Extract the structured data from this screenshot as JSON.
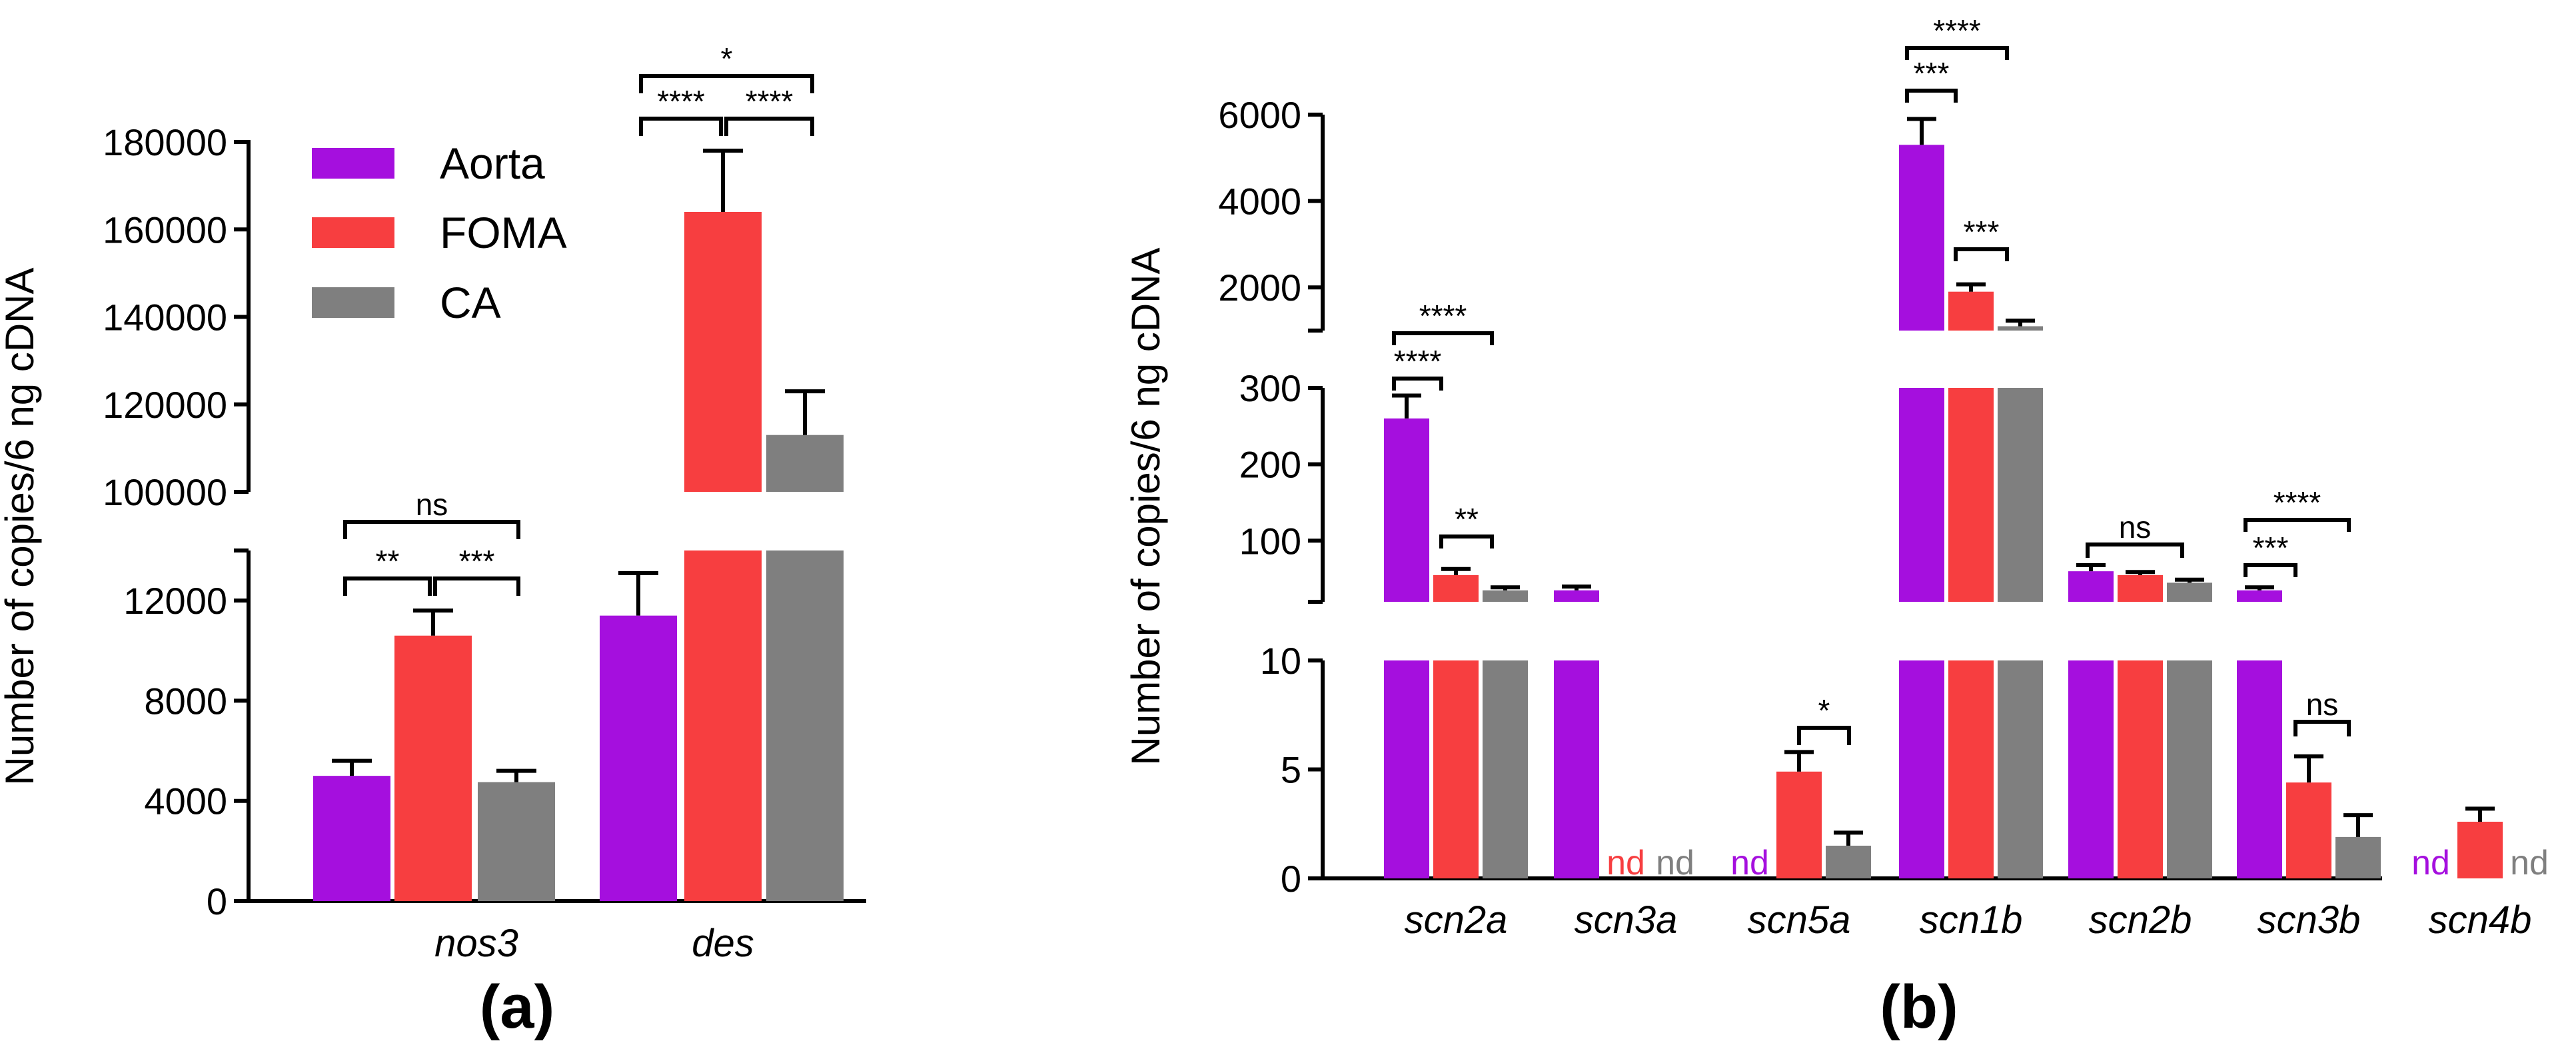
{
  "colors": {
    "Aorta": "#a50fde",
    "FOMA": "#f73e40",
    "CA": "#7f7f7f"
  },
  "chart_data": [
    {
      "type": "bar",
      "panel_label": "(a)",
      "ylabel": "Number of copies/6 ng cDNA",
      "broken_y_axis": true,
      "y_segments": [
        [
          0,
          14000
        ],
        [
          100000,
          180000
        ]
      ],
      "yticks_lower": [
        "0",
        "4000",
        "8000",
        "12000"
      ],
      "yticks_upper": [
        "100000",
        "120000",
        "140000",
        "160000",
        "180000"
      ],
      "legend": [
        "Aorta",
        "FOMA",
        "CA"
      ],
      "legend_position": "top-left",
      "categories": [
        "nos3",
        "des"
      ],
      "series": [
        {
          "name": "Aorta",
          "values": [
            5000,
            11400
          ],
          "errors": [
            600,
            1700
          ]
        },
        {
          "name": "FOMA",
          "values": [
            10600,
            164000
          ],
          "errors": [
            1000,
            14000
          ]
        },
        {
          "name": "CA",
          "values": [
            4750,
            113000
          ],
          "errors": [
            450,
            10000
          ]
        }
      ],
      "significance": [
        {
          "category": 0,
          "from": 0,
          "to": 1,
          "label": "**"
        },
        {
          "category": 0,
          "from": 1,
          "to": 2,
          "label": "***"
        },
        {
          "category": 0,
          "from": 0,
          "to": 2,
          "label": "ns"
        },
        {
          "category": 1,
          "from": 1,
          "to": 2,
          "label": "****"
        },
        {
          "category": 1,
          "from": 0,
          "to": 1,
          "label": "****"
        },
        {
          "category": 1,
          "from": 0,
          "to": 2,
          "label": "*"
        }
      ]
    },
    {
      "type": "bar",
      "panel_label": "(b)",
      "ylabel": "Number of copies/6 ng cDNA",
      "broken_y_axis": true,
      "y_segments": [
        [
          0,
          10
        ],
        [
          20,
          300
        ],
        [
          1000,
          6000
        ]
      ],
      "yticks_low": [
        "0",
        "5",
        "10"
      ],
      "yticks_mid": [
        "100",
        "200",
        "300"
      ],
      "yticks_high": [
        "2000",
        "4000",
        "6000"
      ],
      "categories": [
        "scn2a",
        "scn3a",
        "scn5a",
        "scn1b",
        "scn2b",
        "scn3b",
        "scn4b"
      ],
      "not_detected_label": "nd",
      "series": [
        {
          "name": "Aorta",
          "values": [
            260,
            35,
            null,
            5300,
            60,
            35,
            null
          ],
          "errors": [
            30,
            5,
            null,
            600,
            8,
            4,
            null
          ]
        },
        {
          "name": "FOMA",
          "values": [
            55,
            null,
            4.9,
            1900,
            55,
            4.4,
            2.6
          ],
          "errors": [
            8,
            null,
            0.9,
            170,
            4,
            1.2,
            0.6
          ]
        },
        {
          "name": "CA",
          "values": [
            35,
            null,
            1.5,
            1100,
            45,
            1.9,
            null
          ],
          "errors": [
            4,
            null,
            0.6,
            130,
            4,
            1.0,
            null
          ]
        }
      ],
      "significance": [
        {
          "category": 0,
          "from": 0,
          "to": 1,
          "label": "****"
        },
        {
          "category": 0,
          "from": 0,
          "to": 2,
          "label": "****"
        },
        {
          "category": 0,
          "from": 1,
          "to": 2,
          "label": "**"
        },
        {
          "category": 2,
          "from": 1,
          "to": 2,
          "label": "*"
        },
        {
          "category": 3,
          "from": 0,
          "to": 1,
          "label": "***"
        },
        {
          "category": 3,
          "from": 0,
          "to": 2,
          "label": "****"
        },
        {
          "category": 3,
          "from": 1,
          "to": 2,
          "label": "***"
        },
        {
          "category": 4,
          "from": 0,
          "to": 2,
          "label": "ns"
        },
        {
          "category": 5,
          "from": 0,
          "to": 1,
          "label": "***"
        },
        {
          "category": 5,
          "from": 0,
          "to": 2,
          "label": "****"
        },
        {
          "category": 5,
          "from": 1,
          "to": 2,
          "label": "ns"
        }
      ]
    }
  ]
}
